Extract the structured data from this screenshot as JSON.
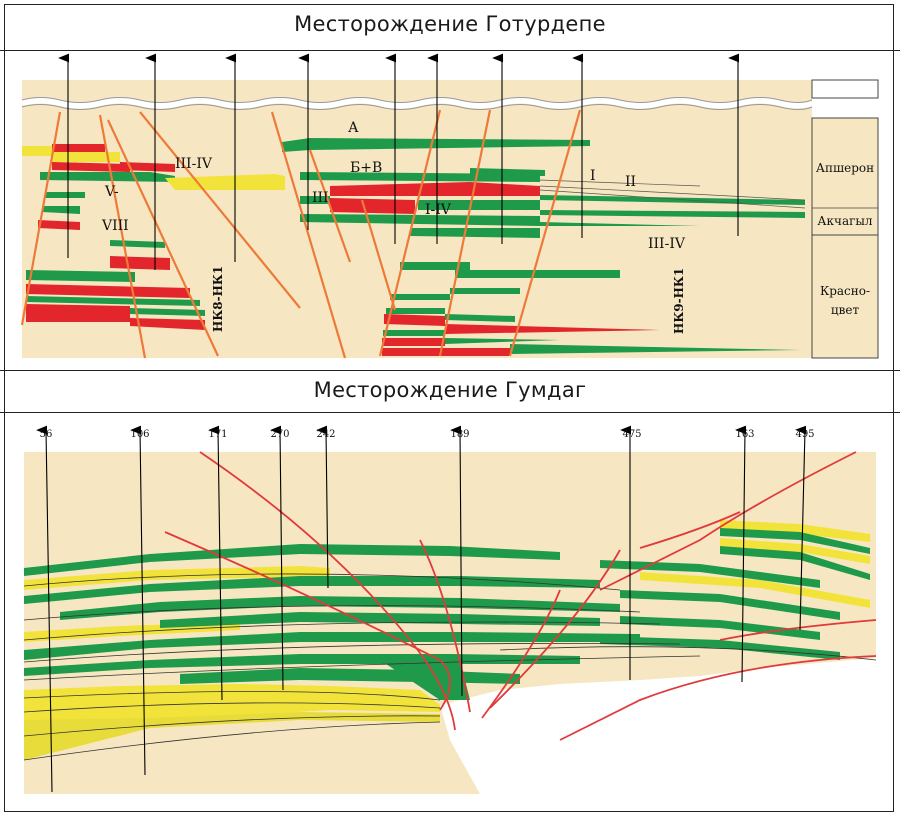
{
  "panels": {
    "top": {
      "title": "Месторождение Готурдепе",
      "zones": {
        "apsheron": "Апшерон",
        "akchagyl": "Акчагыл",
        "krasnotsvet_1": "Красно-",
        "krasnotsvet_2": "цвет"
      },
      "labels": {
        "a": "А",
        "bv": "Б+В",
        "i": "I",
        "ii": "II",
        "iii_iv_left": "III-IV",
        "iii": "III",
        "i_iv": "I-IV",
        "v": "V-",
        "viii": "VIII",
        "iii_iv_right": "III-IV",
        "hk8": "НК8-НК1",
        "hk9": "НК9-НК1"
      }
    },
    "bottom": {
      "title": "Месторождение Гумдаг",
      "wells": [
        "56",
        "106",
        "171",
        "270",
        "242",
        "189",
        "475",
        "163",
        "495"
      ]
    }
  },
  "colors": {
    "background": "#f6e7c2",
    "green": "#1f9a4a",
    "red": "#e2262c",
    "yellow": "#f2e33a",
    "fault": "#ee7a3a",
    "fault_bottom": "#e03a3a"
  }
}
